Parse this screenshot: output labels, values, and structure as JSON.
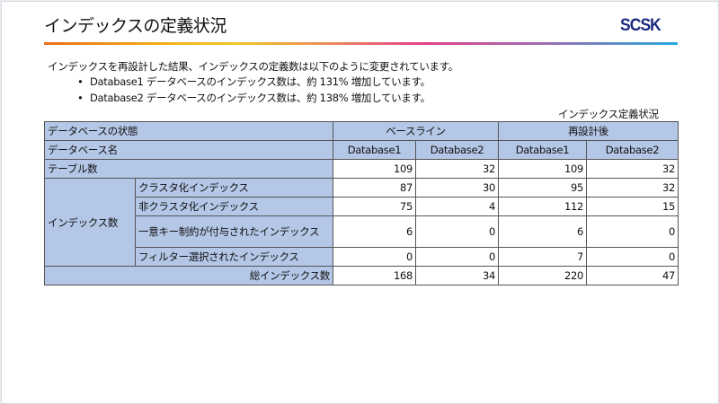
{
  "title": "インデックスの定義状況",
  "logo": "SCSK",
  "intro": "インデックスを再設計した結果、インデックスの定義数は以下のように変更されています。",
  "bullets": [
    "Database1 データベースのインデックス数は、約 131% 増加しています。",
    "Database2 データベースのインデックス数は、約 138% 増加しています。"
  ],
  "table_caption": "インデックス定義状況",
  "table": {
    "state_label": "データベースの状態",
    "baseline": "ベースライン",
    "redesigned": "再設計後",
    "dbname_label": "データベース名",
    "db_names": [
      "Database1",
      "Database2",
      "Database1",
      "Database2"
    ],
    "table_count_label": "テーブル数",
    "table_count": [
      "109",
      "32",
      "109",
      "32"
    ],
    "index_count_label": "インデックス数",
    "index_rows": [
      {
        "label": "クラスタ化インデックス",
        "values": [
          "87",
          "30",
          "95",
          "32"
        ]
      },
      {
        "label": "非クラスタ化インデックス",
        "values": [
          "75",
          "4",
          "112",
          "15"
        ]
      },
      {
        "label": "一意キー制約が付与されたインデックス",
        "values": [
          "6",
          "0",
          "6",
          "0"
        ]
      },
      {
        "label": "フィルター選択されたインデックス",
        "values": [
          "0",
          "0",
          "7",
          "0"
        ]
      }
    ],
    "total_label": "総インデックス数",
    "total": [
      "168",
      "34",
      "220",
      "47"
    ]
  },
  "colors": {
    "header_fill": "#b4c7e7",
    "logo": "#1a2a80"
  }
}
